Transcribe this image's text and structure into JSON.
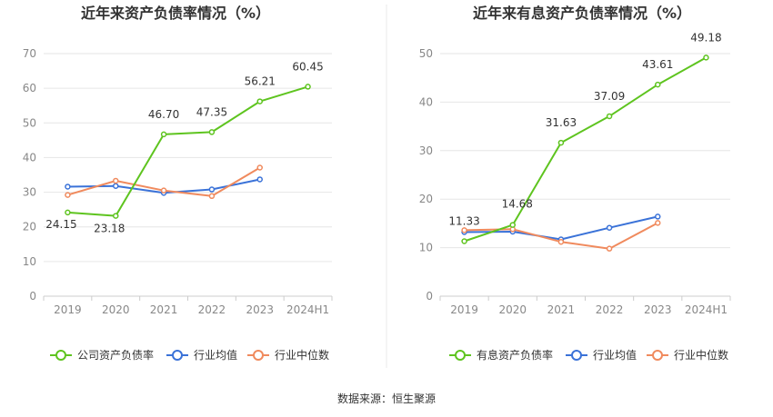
{
  "chart_data": [
    {
      "type": "line",
      "title": "近年来资产负债率情况（%）",
      "categories": [
        "2019",
        "2020",
        "2021",
        "2022",
        "2023",
        "2024H1"
      ],
      "ylim": [
        0,
        70
      ],
      "yticks": [
        "0",
        "10",
        "20",
        "30",
        "40",
        "50",
        "60",
        "70"
      ],
      "grid": true,
      "legend_position": "bottom",
      "series": [
        {
          "name": "公司资产负债率",
          "color": "#5ec41f",
          "values": [
            24.15,
            23.18,
            46.7,
            47.35,
            56.21,
            60.45
          ],
          "labels": [
            "24.15",
            "23.18",
            "46.70",
            "47.35",
            "56.21",
            "60.45"
          ]
        },
        {
          "name": "行业均值",
          "color": "#3a72d8",
          "values": [
            31.6,
            31.8,
            29.8,
            30.8,
            33.7,
            null
          ]
        },
        {
          "name": "行业中位数",
          "color": "#f08a5d",
          "values": [
            29.2,
            33.3,
            30.5,
            28.9,
            37.1,
            null
          ]
        }
      ]
    },
    {
      "type": "line",
      "title": "近年来有息资产负债率情况（%）",
      "categories": [
        "2019",
        "2020",
        "2021",
        "2022",
        "2023",
        "2024H1"
      ],
      "ylim": [
        0,
        50
      ],
      "yticks": [
        "0",
        "10",
        "20",
        "30",
        "40",
        "50"
      ],
      "grid": true,
      "legend_position": "bottom",
      "series": [
        {
          "name": "有息资产负债率",
          "color": "#5ec41f",
          "values": [
            11.33,
            14.68,
            31.63,
            37.09,
            43.61,
            49.18
          ],
          "labels": [
            "11.33",
            "14.68",
            "31.63",
            "37.09",
            "43.61",
            "49.18"
          ]
        },
        {
          "name": "行业均值",
          "color": "#3a72d8",
          "values": [
            13.2,
            13.3,
            11.7,
            14.1,
            16.4,
            null
          ]
        },
        {
          "name": "行业中位数",
          "color": "#f08a5d",
          "values": [
            13.6,
            13.8,
            11.2,
            9.8,
            15.1,
            null
          ]
        }
      ]
    }
  ],
  "footer": {
    "source": "数据来源：恒生聚源"
  }
}
